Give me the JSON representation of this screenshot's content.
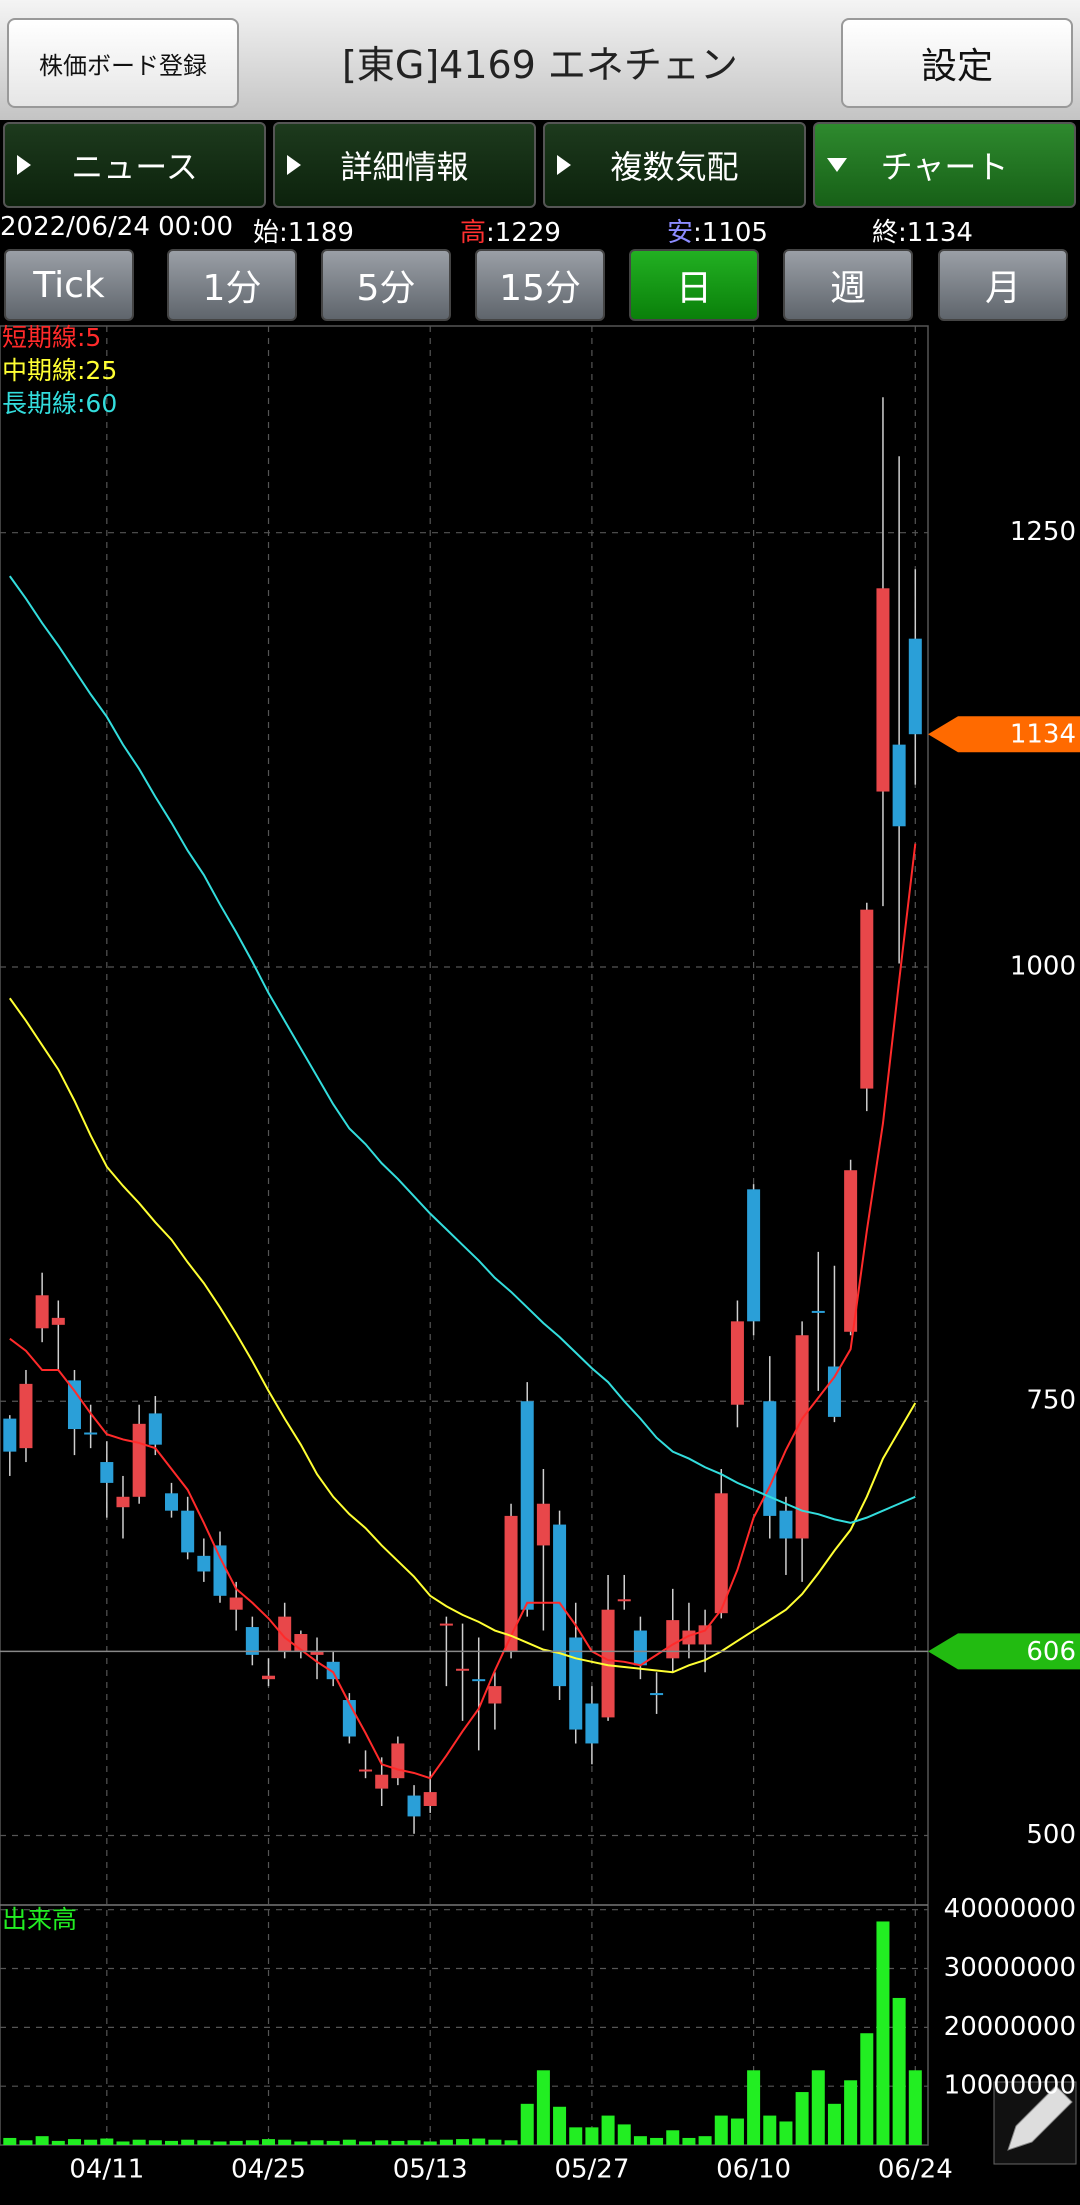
{
  "header": {
    "register_button": "株価ボード登録",
    "title": "[東G]4169 エネチェン",
    "settings_button": "設定"
  },
  "tabs": [
    "ニュース",
    "詳細情報",
    "複数気配",
    "チャート"
  ],
  "active_tab": 3,
  "quote": {
    "datetime": "2022/06/24 00:00",
    "separator": ":",
    "open_label": "始",
    "open": 1189,
    "high_label": "高",
    "high": 1229,
    "low_label": "安",
    "low": 1105,
    "close_label": "終",
    "close": 1134
  },
  "periods": [
    "Tick",
    "1分",
    "5分",
    "15分",
    "日",
    "週",
    "月"
  ],
  "active_period": 4,
  "chart_data": [
    {
      "type": "candlestick",
      "up_color": "#e8474a",
      "down_color": "#2a9fd8",
      "categories": [
        null,
        null,
        null,
        null,
        null,
        null,
        "04/11",
        null,
        null,
        null,
        null,
        null,
        null,
        null,
        null,
        null,
        "04/25",
        null,
        null,
        null,
        null,
        null,
        null,
        null,
        null,
        null,
        "05/13",
        null,
        null,
        null,
        null,
        null,
        null,
        null,
        null,
        null,
        "05/27",
        null,
        null,
        null,
        null,
        null,
        null,
        null,
        null,
        null,
        "06/10",
        null,
        null,
        null,
        null,
        null,
        null,
        null,
        null,
        null,
        "06/24"
      ],
      "open": [
        740,
        723,
        792,
        794,
        762,
        732,
        715,
        689,
        695,
        743,
        697,
        687,
        661,
        667,
        630,
        620,
        590,
        606,
        606,
        604,
        600,
        578,
        537,
        527,
        533,
        523,
        517,
        622,
        595,
        590,
        576,
        606,
        750,
        667,
        679,
        614,
        576,
        568,
        636,
        618,
        582,
        602,
        610,
        610,
        628,
        748,
        872,
        750,
        687,
        671,
        802,
        770,
        790,
        930,
        1101,
        1128,
        1189
      ],
      "high": [
        742,
        768,
        824,
        808,
        768,
        748,
        727,
        707,
        748,
        753,
        703,
        695,
        671,
        675,
        646,
        626,
        602,
        634,
        618,
        614,
        606,
        582,
        549,
        545,
        557,
        529,
        537,
        626,
        622,
        614,
        594,
        691,
        761,
        711,
        687,
        634,
        586,
        650,
        650,
        626,
        594,
        642,
        634,
        630,
        711,
        808,
        875,
        776,
        695,
        796,
        836,
        828,
        889,
        1037,
        1328,
        1294,
        1229
      ],
      "low": [
        707,
        715,
        784,
        768,
        719,
        723,
        683,
        671,
        691,
        719,
        683,
        659,
        646,
        634,
        618,
        598,
        586,
        602,
        602,
        590,
        586,
        553,
        533,
        517,
        529,
        501,
        513,
        586,
        566,
        549,
        561,
        602,
        626,
        618,
        578,
        553,
        541,
        566,
        630,
        590,
        570,
        594,
        602,
        594,
        625,
        735,
        788,
        671,
        650,
        646,
        756,
        738,
        788,
        917,
        1035,
        1002,
        1105
      ],
      "close": [
        721,
        760,
        811,
        798,
        734,
        731,
        703,
        695,
        737,
        725,
        687,
        663,
        652,
        638,
        637,
        604,
        592,
        626,
        616,
        606,
        590,
        557,
        538,
        535,
        553,
        511,
        525,
        622,
        596,
        589,
        586,
        684,
        630,
        691,
        586,
        561,
        553,
        630,
        636,
        598,
        581,
        624,
        618,
        621,
        697,
        796,
        796,
        684,
        671,
        788,
        801,
        741,
        883,
        1033,
        1218,
        1081,
        1134
      ],
      "lines": [
        {
          "name": "短期線:5",
          "color": "#ff2a2a",
          "values": [
            786,
            779,
            768,
            768,
            756,
            743,
            731,
            728,
            726,
            723,
            711,
            699,
            680,
            660,
            642,
            634,
            625,
            614,
            607,
            600,
            594,
            576,
            559,
            541,
            538,
            536,
            533,
            546,
            560,
            573,
            595,
            615,
            634,
            634,
            634,
            621,
            606,
            601,
            600,
            598,
            604,
            610,
            615,
            618,
            630,
            653,
            683,
            701,
            722,
            740,
            752,
            764,
            780,
            848,
            910,
            992,
            1071
          ]
        },
        {
          "name": "中期線:25",
          "color": "#ffff33",
          "values": [
            982,
            969,
            955,
            941,
            923,
            903,
            885,
            874,
            864,
            853,
            843,
            830,
            818,
            804,
            789,
            773,
            756,
            740,
            725,
            708,
            695,
            685,
            677,
            667,
            658,
            649,
            638,
            632,
            627,
            623,
            618,
            615,
            611,
            607,
            605,
            602,
            600,
            598,
            597,
            596,
            595,
            594,
            598,
            601,
            606,
            612,
            618,
            624,
            630,
            639,
            651,
            664,
            676,
            695,
            717,
            733,
            749
          ]
        },
        {
          "name": "長期線:60",
          "color": "#33dddd",
          "values": [
            1225,
            1212,
            1198,
            1185,
            1171,
            1157,
            1144,
            1128,
            1114,
            1098,
            1083,
            1067,
            1053,
            1036,
            1020,
            1003,
            985,
            969,
            953,
            937,
            921,
            907,
            898,
            887,
            878,
            868,
            858,
            849,
            840,
            831,
            821,
            813,
            804,
            795,
            787,
            778,
            769,
            761,
            750,
            740,
            729,
            721,
            717,
            712,
            708,
            703,
            699,
            695,
            691,
            687,
            685,
            682,
            680,
            683,
            687,
            691,
            695
          ]
        }
      ],
      "markers": [
        {
          "value": 1134,
          "color": "#ff6a00",
          "line": false
        },
        {
          "value": 606,
          "color": "#22bb11",
          "line": true
        }
      ],
      "ylim": [
        460,
        1369
      ],
      "yticks": [
        500,
        750,
        1000,
        1250
      ],
      "grid": true
    },
    {
      "type": "bar",
      "title": "出来高",
      "color": "#22ee22",
      "values": [
        1200000,
        800000,
        1500000,
        700000,
        1000000,
        900000,
        1100000,
        600000,
        900000,
        800000,
        700000,
        900000,
        800000,
        600000,
        700000,
        800000,
        1000000,
        900000,
        600000,
        800000,
        700000,
        900000,
        600000,
        800000,
        700000,
        800000,
        600000,
        900000,
        1000000,
        1100000,
        900000,
        800000,
        7000000,
        12700000,
        6500000,
        3000000,
        3000000,
        5000000,
        3500000,
        1500000,
        1200000,
        2500000,
        1200000,
        1500000,
        5000000,
        4500000,
        12700000,
        5000000,
        4000000,
        9000000,
        12700000,
        7000000,
        11000000,
        19000000,
        38000000,
        25000000,
        12700000
      ],
      "ylim": [
        0,
        40800000
      ],
      "yticks": [
        10000000,
        20000000,
        30000000,
        40000000
      ],
      "grid": true
    }
  ]
}
